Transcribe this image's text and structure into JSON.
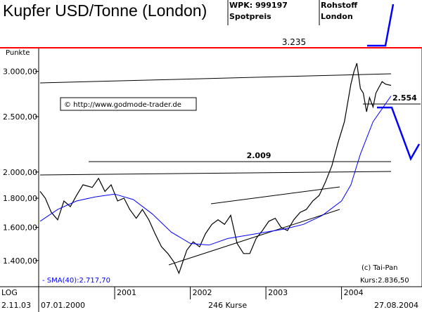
{
  "header": {
    "title": "Kupfer USD/Tonne (London)",
    "wpk": "WPK: 999197",
    "spot": "Spotpreis",
    "rohstoff": "Rohstoff",
    "london": "London"
  },
  "chart_data": {
    "type": "line",
    "ylabel": "Punkte",
    "y_scale": "log",
    "ylim": [
      1260,
      3300
    ],
    "y_ticks": [
      {
        "value": 1400,
        "label": "1.400,00"
      },
      {
        "value": 1600,
        "label": "1.600,00"
      },
      {
        "value": 1800,
        "label": "1.800,00"
      },
      {
        "value": 2000,
        "label": "2.000,00"
      },
      {
        "value": 2500,
        "label": "2.500,00"
      },
      {
        "value": 3000,
        "label": "3.000,00"
      }
    ],
    "x_ticks": [
      {
        "date": "2001-01-01",
        "label": "2001"
      },
      {
        "date": "2002-01-01",
        "label": "2002"
      },
      {
        "date": "2003-01-01",
        "label": "2003"
      },
      {
        "date": "2004-01-01",
        "label": "2004"
      }
    ],
    "x_start_label": "07.01.2000",
    "x_end_label": "27.08.2004",
    "count_label": "246 Kurse",
    "bottom_left_top": "LOG",
    "bottom_left_bottom": "2.11.03",
    "copyright": "(c) Tai-Pan",
    "kurs_label": "Kurs:2.836,50",
    "watermark": "© http://www.godmode-trader.de",
    "sma_label": "- SMA(40):2.717,70",
    "annotations": [
      {
        "text": "3.235",
        "value": 3235
      },
      {
        "text": "2.554",
        "value": 2554
      },
      {
        "text": "2.009",
        "value": 2009
      }
    ],
    "colors": {
      "price": "#000000",
      "sma": "#0000ff",
      "resistance": "#ff0000",
      "projection": "#0000ff",
      "sma_label": "#0000ff"
    },
    "series": [
      {
        "role": "price",
        "x": [
          "2000-01-07",
          "2000-02-01",
          "2000-03-01",
          "2000-04-01",
          "2000-05-01",
          "2000-06-01",
          "2000-07-01",
          "2000-08-01",
          "2000-09-15",
          "2000-10-15",
          "2000-11-15",
          "2000-12-15",
          "2001-01-15",
          "2001-02-15",
          "2001-03-15",
          "2001-04-15",
          "2001-05-15",
          "2001-06-15",
          "2001-07-15",
          "2001-08-15",
          "2001-09-15",
          "2001-10-15",
          "2001-11-07",
          "2001-12-15",
          "2002-01-15",
          "2002-02-15",
          "2002-03-15",
          "2002-04-15",
          "2002-05-15",
          "2002-06-15",
          "2002-07-15",
          "2002-08-15",
          "2002-09-15",
          "2002-10-15",
          "2002-11-15",
          "2002-12-15",
          "2003-01-15",
          "2003-02-15",
          "2003-03-15",
          "2003-04-15",
          "2003-05-15",
          "2003-06-15",
          "2003-07-15",
          "2003-08-15",
          "2003-09-15",
          "2003-10-15",
          "2003-11-15",
          "2003-12-15",
          "2004-01-15",
          "2004-02-15",
          "2004-03-01",
          "2004-03-15",
          "2004-04-01",
          "2004-04-15",
          "2004-05-01",
          "2004-05-15",
          "2004-06-01",
          "2004-06-15",
          "2004-07-01",
          "2004-07-15",
          "2004-08-01",
          "2004-08-27"
        ],
        "y": [
          1850,
          1800,
          1700,
          1650,
          1780,
          1740,
          1820,
          1900,
          1880,
          1950,
          1850,
          1900,
          1780,
          1800,
          1720,
          1660,
          1720,
          1650,
          1560,
          1480,
          1440,
          1390,
          1330,
          1460,
          1510,
          1480,
          1560,
          1620,
          1650,
          1620,
          1680,
          1500,
          1440,
          1440,
          1530,
          1580,
          1640,
          1660,
          1600,
          1580,
          1650,
          1700,
          1720,
          1780,
          1820,
          1920,
          2050,
          2250,
          2450,
          2850,
          3000,
          3100,
          2800,
          2750,
          2550,
          2700,
          2600,
          2750,
          2820,
          2880,
          2850,
          2836
        ]
      },
      {
        "role": "sma",
        "name": "SMA(40)",
        "x": [
          "2000-01-07",
          "2000-04-01",
          "2000-07-01",
          "2000-10-01",
          "2001-01-01",
          "2001-04-01",
          "2001-07-01",
          "2001-10-01",
          "2002-01-01",
          "2002-04-01",
          "2002-07-01",
          "2002-10-01",
          "2003-01-01",
          "2003-04-01",
          "2003-07-01",
          "2003-10-01",
          "2004-01-01",
          "2004-02-15",
          "2004-04-01",
          "2004-06-01",
          "2004-08-27"
        ],
        "y": [
          1640,
          1720,
          1780,
          1810,
          1830,
          1790,
          1690,
          1570,
          1500,
          1490,
          1530,
          1550,
          1570,
          1590,
          1620,
          1680,
          1780,
          1900,
          2150,
          2450,
          2718
        ]
      }
    ]
  }
}
